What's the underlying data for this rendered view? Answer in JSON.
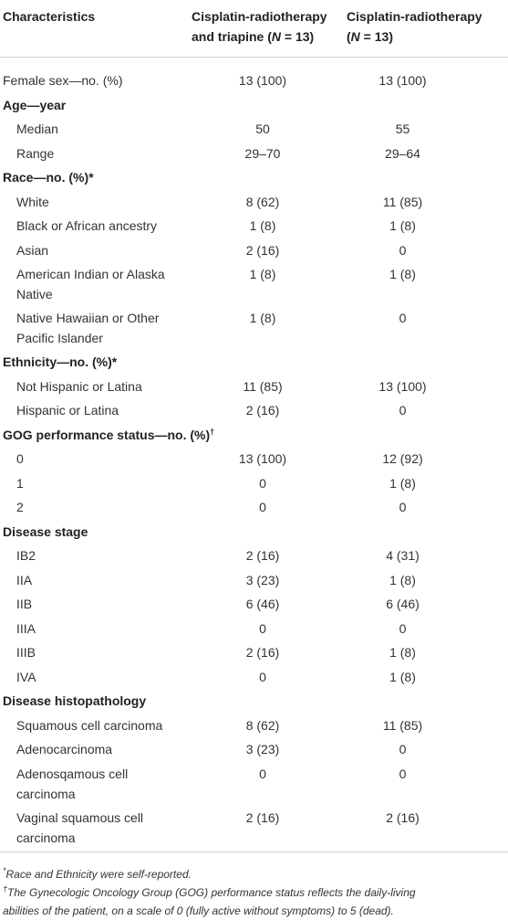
{
  "table": {
    "header": [
      "Characteristics",
      [
        [
          "Cisplatin-radiotherapy"
        ],
        [
          "and triapine (",
          "N",
          " = 13)"
        ]
      ],
      [
        [
          "Cisplatin-radiotherapy"
        ],
        [
          "(",
          "N",
          " = 13)"
        ]
      ]
    ],
    "body": [
      {
        "label": "Female sex—no. (%)",
        "values": [
          "13 (100)",
          "13 (100)"
        ]
      },
      {
        "section": "Age—year",
        "rows": [
          {
            "label": "Median",
            "values": [
              "50",
              "55"
            ]
          },
          {
            "label": "Range",
            "values": [
              "29–70",
              "29–64"
            ]
          }
        ]
      },
      {
        "section": "Race—no. (%)*",
        "rows": [
          {
            "label": "White",
            "values": [
              "8 (62)",
              "11 (85)"
            ]
          },
          {
            "label": "Black or African ancestry",
            "values": [
              "1 (8)",
              "1 (8)"
            ]
          },
          {
            "label": "Asian",
            "values": [
              "2 (16)",
              "0"
            ]
          },
          {
            "label": [
              "American Indian or Alaska",
              "Native"
            ],
            "values": [
              "1 (8)",
              "1 (8)"
            ]
          },
          {
            "label": [
              "Native Hawaiian or Other",
              "Pacific Islander"
            ],
            "values": [
              "1 (8)",
              "0"
            ]
          }
        ]
      },
      {
        "section": "Ethnicity—no. (%)*",
        "rows": [
          {
            "label": "Not Hispanic or Latina",
            "values": [
              "11 (85)",
              "13 (100)"
            ]
          },
          {
            "label": "Hispanic or Latina",
            "values": [
              "2 (16)",
              "0"
            ]
          }
        ]
      },
      {
        "section": "GOG performance status—no. (%)",
        "note": "†",
        "rows": [
          {
            "label": "0",
            "values": [
              "13 (100)",
              "12 (92)"
            ]
          },
          {
            "label": "1",
            "values": [
              "0",
              "1 (8)"
            ]
          },
          {
            "label": "2",
            "values": [
              "0",
              "0"
            ]
          }
        ]
      },
      {
        "section": "Disease stage",
        "rows": [
          {
            "label": "IB2",
            "values": [
              "2 (16)",
              "4 (31)"
            ]
          },
          {
            "label": "IIA",
            "values": [
              "3 (23)",
              "1 (8)"
            ]
          },
          {
            "label": "IIB",
            "values": [
              "6 (46)",
              "6 (46)"
            ]
          },
          {
            "label": "IIIA",
            "values": [
              "0",
              "0"
            ]
          },
          {
            "label": "IIIB",
            "values": [
              "2 (16)",
              "1 (8)"
            ]
          },
          {
            "label": "IVA",
            "values": [
              "0",
              "1 (8)"
            ]
          }
        ]
      },
      {
        "section": "Disease histopathology",
        "rows": [
          {
            "label": "Squamous cell carcinoma",
            "values": [
              "8 (62)",
              "11 (85)"
            ]
          },
          {
            "label": "Adenocarcinoma",
            "values": [
              "3 (23)",
              "0"
            ]
          },
          {
            "label": [
              "Adenosqamous cell",
              "carcinoma"
            ],
            "values": [
              "0",
              "0"
            ]
          },
          {
            "label": [
              "Vaginal squamous cell",
              "carcinoma"
            ],
            "values": [
              "2 (16)",
              "2 (16)"
            ]
          }
        ]
      }
    ],
    "footnotes": [
      {
        "mark": "*",
        "lines": [
          "Race and Ethnicity were self-reported."
        ]
      },
      {
        "mark": "†",
        "lines": [
          "The Gynecologic Oncology Group (GOG) performance status reflects the daily-living",
          "abilities of the patient, on a scale of 0 (fully active without symptoms) to 5 (dead)."
        ]
      }
    ]
  }
}
